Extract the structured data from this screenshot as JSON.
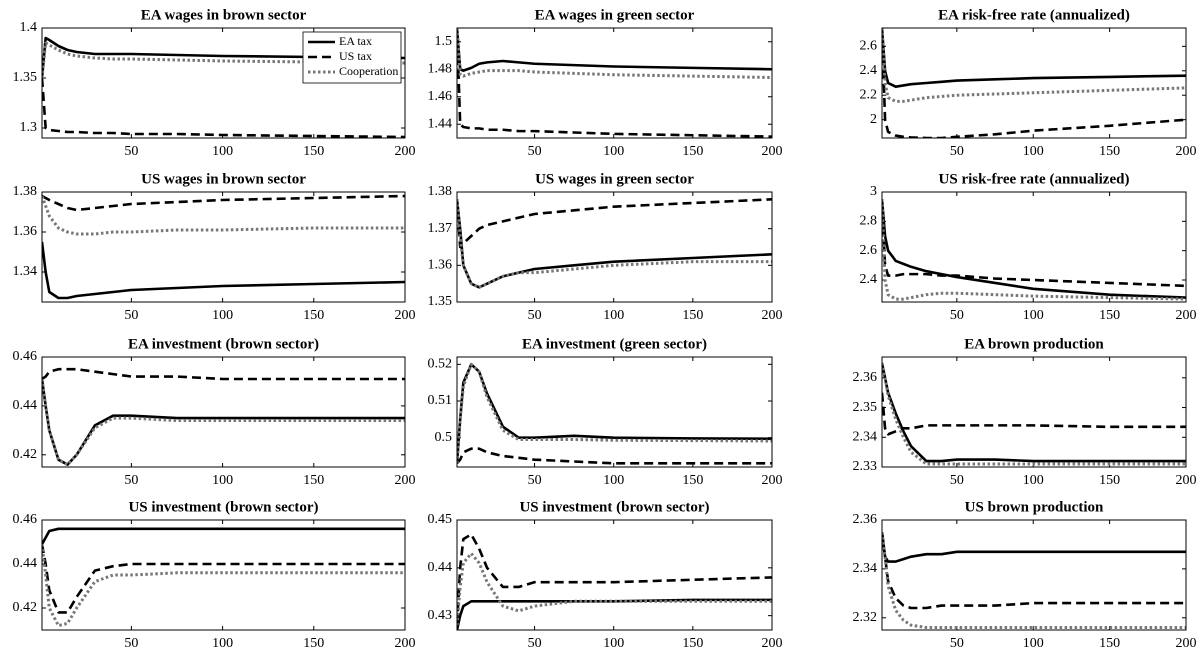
{
  "chart_data": [
    {
      "type": "line",
      "title": "EA wages in brown sector",
      "x": [
        1,
        3,
        5,
        10,
        15,
        20,
        30,
        40,
        50,
        75,
        100,
        150,
        200
      ],
      "xlim": [
        1,
        200
      ],
      "xticks": [
        50,
        100,
        150,
        200
      ],
      "ylim": [
        1.29,
        1.4
      ],
      "yticks": [
        1.3,
        1.35,
        1.4
      ],
      "legend": "upper right",
      "series": [
        {
          "name": "EA tax",
          "color": "#000000",
          "dash": "solid",
          "values": [
            1.35,
            1.39,
            1.388,
            1.382,
            1.378,
            1.376,
            1.374,
            1.374,
            1.374,
            1.373,
            1.372,
            1.371,
            1.37
          ]
        },
        {
          "name": "US tax",
          "color": "#000000",
          "dash": "dashed",
          "values": [
            1.35,
            1.3,
            1.298,
            1.297,
            1.296,
            1.296,
            1.295,
            1.295,
            1.294,
            1.294,
            1.293,
            1.292,
            1.291
          ]
        },
        {
          "name": "Cooperation",
          "color": "#777777",
          "dash": "dotted",
          "values": [
            1.35,
            1.385,
            1.383,
            1.378,
            1.374,
            1.372,
            1.37,
            1.369,
            1.369,
            1.368,
            1.367,
            1.366,
            1.365
          ]
        }
      ]
    },
    {
      "type": "line",
      "title": "EA wages in green sector",
      "x": [
        1,
        3,
        5,
        10,
        15,
        20,
        30,
        40,
        50,
        75,
        100,
        150,
        200
      ],
      "xlim": [
        1,
        200
      ],
      "xticks": [
        50,
        100,
        150,
        200
      ],
      "ylim": [
        1.43,
        1.51
      ],
      "yticks": [
        1.44,
        1.46,
        1.48,
        1.5
      ],
      "series": [
        {
          "color": "#000000",
          "dash": "solid",
          "values": [
            1.51,
            1.48,
            1.479,
            1.481,
            1.484,
            1.485,
            1.486,
            1.485,
            1.484,
            1.483,
            1.482,
            1.481,
            1.48
          ]
        },
        {
          "color": "#000000",
          "dash": "dashed",
          "values": [
            1.51,
            1.44,
            1.438,
            1.437,
            1.437,
            1.436,
            1.436,
            1.435,
            1.435,
            1.434,
            1.433,
            1.432,
            1.431
          ]
        },
        {
          "color": "#777777",
          "dash": "dotted",
          "values": [
            1.51,
            1.476,
            1.475,
            1.477,
            1.478,
            1.479,
            1.479,
            1.479,
            1.478,
            1.477,
            1.476,
            1.475,
            1.474
          ]
        }
      ]
    },
    {
      "type": "line",
      "title": "EA risk-free rate (annualized)",
      "x": [
        1,
        3,
        5,
        10,
        15,
        20,
        30,
        40,
        50,
        75,
        100,
        150,
        200
      ],
      "xlim": [
        1,
        200
      ],
      "xticks": [
        50,
        100,
        150,
        200
      ],
      "ylim": [
        1.85,
        2.75
      ],
      "yticks": [
        2,
        2.2,
        2.4,
        2.6
      ],
      "series": [
        {
          "color": "#000000",
          "dash": "solid",
          "values": [
            2.75,
            2.4,
            2.3,
            2.27,
            2.28,
            2.29,
            2.3,
            2.31,
            2.32,
            2.33,
            2.34,
            2.35,
            2.36
          ]
        },
        {
          "color": "#000000",
          "dash": "dashed",
          "values": [
            2.75,
            2.0,
            1.9,
            1.87,
            1.86,
            1.855,
            1.85,
            1.85,
            1.86,
            1.88,
            1.91,
            1.95,
            2.0
          ]
        },
        {
          "color": "#777777",
          "dash": "dotted",
          "values": [
            2.75,
            2.3,
            2.18,
            2.15,
            2.15,
            2.16,
            2.18,
            2.19,
            2.2,
            2.21,
            2.22,
            2.24,
            2.26
          ]
        }
      ]
    },
    {
      "type": "line",
      "title": "US wages in brown sector",
      "x": [
        1,
        3,
        5,
        10,
        15,
        20,
        30,
        40,
        50,
        75,
        100,
        150,
        200
      ],
      "xlim": [
        1,
        200
      ],
      "xticks": [
        50,
        100,
        150,
        200
      ],
      "ylim": [
        1.325,
        1.38
      ],
      "yticks": [
        1.34,
        1.36,
        1.38
      ],
      "series": [
        {
          "color": "#000000",
          "dash": "solid",
          "values": [
            1.355,
            1.34,
            1.33,
            1.327,
            1.327,
            1.328,
            1.329,
            1.33,
            1.331,
            1.332,
            1.333,
            1.334,
            1.335
          ]
        },
        {
          "color": "#000000",
          "dash": "dashed",
          "values": [
            1.378,
            1.377,
            1.376,
            1.374,
            1.372,
            1.371,
            1.372,
            1.373,
            1.374,
            1.375,
            1.376,
            1.377,
            1.378
          ]
        },
        {
          "color": "#777777",
          "dash": "dotted",
          "values": [
            1.378,
            1.373,
            1.368,
            1.362,
            1.36,
            1.359,
            1.359,
            1.36,
            1.36,
            1.361,
            1.361,
            1.362,
            1.362
          ]
        }
      ]
    },
    {
      "type": "line",
      "title": "US wages in green sector",
      "x": [
        1,
        3,
        5,
        10,
        15,
        20,
        30,
        40,
        50,
        75,
        100,
        150,
        200
      ],
      "xlim": [
        1,
        200
      ],
      "xticks": [
        50,
        100,
        150,
        200
      ],
      "ylim": [
        1.35,
        1.38
      ],
      "yticks": [
        1.35,
        1.36,
        1.37,
        1.38
      ],
      "series": [
        {
          "color": "#000000",
          "dash": "solid",
          "values": [
            1.378,
            1.37,
            1.36,
            1.355,
            1.354,
            1.355,
            1.357,
            1.358,
            1.359,
            1.36,
            1.361,
            1.362,
            1.363
          ]
        },
        {
          "color": "#000000",
          "dash": "dashed",
          "values": [
            1.378,
            1.365,
            1.366,
            1.368,
            1.37,
            1.371,
            1.372,
            1.373,
            1.374,
            1.375,
            1.376,
            1.377,
            1.378
          ]
        },
        {
          "color": "#777777",
          "dash": "dotted",
          "values": [
            1.378,
            1.368,
            1.36,
            1.355,
            1.354,
            1.355,
            1.357,
            1.358,
            1.358,
            1.359,
            1.36,
            1.361,
            1.361
          ]
        }
      ]
    },
    {
      "type": "line",
      "title": "US risk-free rate (annualized)",
      "x": [
        1,
        3,
        5,
        10,
        15,
        20,
        30,
        40,
        50,
        75,
        100,
        150,
        200
      ],
      "xlim": [
        1,
        200
      ],
      "xticks": [
        50,
        100,
        150,
        200
      ],
      "ylim": [
        2.25,
        3
      ],
      "yticks": [
        2.4,
        2.6,
        2.8,
        3
      ],
      "series": [
        {
          "color": "#000000",
          "dash": "solid",
          "values": [
            2.95,
            2.7,
            2.6,
            2.53,
            2.51,
            2.49,
            2.46,
            2.44,
            2.42,
            2.38,
            2.34,
            2.3,
            2.28
          ]
        },
        {
          "color": "#000000",
          "dash": "dashed",
          "values": [
            2.95,
            2.5,
            2.43,
            2.43,
            2.44,
            2.44,
            2.44,
            2.43,
            2.43,
            2.41,
            2.4,
            2.38,
            2.36
          ]
        },
        {
          "color": "#777777",
          "dash": "dotted",
          "values": [
            2.95,
            2.4,
            2.3,
            2.27,
            2.27,
            2.28,
            2.3,
            2.31,
            2.31,
            2.3,
            2.29,
            2.28,
            2.27
          ]
        }
      ]
    },
    {
      "type": "line",
      "title": "EA investment (brown sector)",
      "x": [
        1,
        3,
        5,
        10,
        15,
        20,
        30,
        40,
        50,
        75,
        100,
        150,
        200
      ],
      "xlim": [
        1,
        200
      ],
      "xticks": [
        50,
        100,
        150,
        200
      ],
      "ylim": [
        0.415,
        0.46
      ],
      "yticks": [
        0.42,
        0.44,
        0.46
      ],
      "series": [
        {
          "color": "#000000",
          "dash": "solid",
          "values": [
            0.451,
            0.44,
            0.43,
            0.418,
            0.416,
            0.42,
            0.432,
            0.436,
            0.436,
            0.435,
            0.435,
            0.435,
            0.435
          ]
        },
        {
          "color": "#000000",
          "dash": "dashed",
          "values": [
            0.451,
            0.452,
            0.454,
            0.455,
            0.455,
            0.455,
            0.454,
            0.453,
            0.452,
            0.452,
            0.451,
            0.451,
            0.451
          ]
        },
        {
          "color": "#777777",
          "dash": "dotted",
          "values": [
            0.451,
            0.44,
            0.43,
            0.418,
            0.416,
            0.42,
            0.431,
            0.435,
            0.435,
            0.434,
            0.434,
            0.434,
            0.434
          ]
        }
      ]
    },
    {
      "type": "line",
      "title": "EA investment (green sector)",
      "x": [
        1,
        3,
        5,
        10,
        15,
        20,
        30,
        40,
        50,
        75,
        100,
        150,
        200
      ],
      "xlim": [
        1,
        200
      ],
      "xticks": [
        50,
        100,
        150,
        200
      ],
      "ylim": [
        0.492,
        0.522
      ],
      "yticks": [
        0.5,
        0.51,
        0.52
      ],
      "series": [
        {
          "color": "#000000",
          "dash": "solid",
          "values": [
            0.493,
            0.505,
            0.515,
            0.52,
            0.518,
            0.512,
            0.503,
            0.5,
            0.5,
            0.5005,
            0.5,
            0.4998,
            0.4997
          ]
        },
        {
          "color": "#000000",
          "dash": "dashed",
          "values": [
            0.493,
            0.494,
            0.496,
            0.497,
            0.497,
            0.496,
            0.495,
            0.4945,
            0.494,
            0.4935,
            0.493,
            0.493,
            0.493
          ]
        },
        {
          "color": "#777777",
          "dash": "dotted",
          "values": [
            0.493,
            0.505,
            0.514,
            0.52,
            0.518,
            0.511,
            0.502,
            0.4995,
            0.4995,
            0.4995,
            0.4993,
            0.4992,
            0.4991
          ]
        }
      ]
    },
    {
      "type": "line",
      "title": "EA brown  production",
      "x": [
        1,
        3,
        5,
        10,
        15,
        20,
        30,
        40,
        50,
        75,
        100,
        150,
        200
      ],
      "xlim": [
        1,
        200
      ],
      "xticks": [
        50,
        100,
        150,
        200
      ],
      "ylim": [
        2.33,
        2.367
      ],
      "yticks": [
        2.33,
        2.34,
        2.35,
        2.36
      ],
      "series": [
        {
          "color": "#000000",
          "dash": "solid",
          "values": [
            2.365,
            2.36,
            2.355,
            2.348,
            2.342,
            2.337,
            2.332,
            2.332,
            2.3325,
            2.3325,
            2.332,
            2.332,
            2.332
          ]
        },
        {
          "color": "#000000",
          "dash": "dashed",
          "values": [
            2.355,
            2.343,
            2.341,
            2.342,
            2.343,
            2.343,
            2.344,
            2.344,
            2.344,
            2.344,
            2.344,
            2.3435,
            2.3435
          ]
        },
        {
          "color": "#777777",
          "dash": "dotted",
          "values": [
            2.365,
            2.36,
            2.354,
            2.346,
            2.34,
            2.335,
            2.331,
            2.331,
            2.331,
            2.331,
            2.331,
            2.331,
            2.331
          ]
        }
      ]
    },
    {
      "type": "line",
      "title": "US investment (brown sector)",
      "x": [
        1,
        3,
        5,
        10,
        15,
        20,
        30,
        40,
        50,
        75,
        100,
        150,
        200
      ],
      "xlim": [
        1,
        200
      ],
      "xticks": [
        50,
        100,
        150,
        200
      ],
      "ylim": [
        0.41,
        0.46
      ],
      "yticks": [
        0.42,
        0.44,
        0.46
      ],
      "series": [
        {
          "color": "#000000",
          "dash": "solid",
          "values": [
            0.449,
            0.452,
            0.455,
            0.456,
            0.456,
            0.456,
            0.456,
            0.456,
            0.456,
            0.456,
            0.456,
            0.456,
            0.456
          ]
        },
        {
          "color": "#000000",
          "dash": "dashed",
          "values": [
            0.449,
            0.44,
            0.428,
            0.418,
            0.418,
            0.425,
            0.437,
            0.439,
            0.44,
            0.44,
            0.44,
            0.44,
            0.44
          ]
        },
        {
          "color": "#777777",
          "dash": "dotted",
          "values": [
            0.449,
            0.435,
            0.42,
            0.412,
            0.413,
            0.42,
            0.432,
            0.435,
            0.435,
            0.436,
            0.436,
            0.436,
            0.436
          ]
        }
      ]
    },
    {
      "type": "line",
      "title": "US investment (brown sector)",
      "x": [
        1,
        3,
        5,
        10,
        15,
        20,
        30,
        40,
        50,
        75,
        100,
        150,
        200
      ],
      "xlim": [
        1,
        200
      ],
      "xticks": [
        50,
        100,
        150,
        200
      ],
      "ylim": [
        0.427,
        0.45
      ],
      "yticks": [
        0.43,
        0.44,
        0.45
      ],
      "series": [
        {
          "color": "#000000",
          "dash": "solid",
          "values": [
            0.427,
            0.43,
            0.432,
            0.433,
            0.433,
            0.433,
            0.433,
            0.433,
            0.433,
            0.433,
            0.433,
            0.4333,
            0.4333
          ]
        },
        {
          "color": "#000000",
          "dash": "dashed",
          "values": [
            0.428,
            0.44,
            0.446,
            0.447,
            0.444,
            0.44,
            0.436,
            0.436,
            0.437,
            0.437,
            0.437,
            0.4375,
            0.438
          ]
        },
        {
          "color": "#777777",
          "dash": "dotted",
          "values": [
            0.428,
            0.436,
            0.441,
            0.443,
            0.441,
            0.437,
            0.432,
            0.431,
            0.432,
            0.433,
            0.433,
            0.433,
            0.433
          ]
        }
      ]
    },
    {
      "type": "line",
      "title": "US brown production",
      "x": [
        1,
        3,
        5,
        10,
        15,
        20,
        30,
        40,
        50,
        75,
        100,
        150,
        200
      ],
      "xlim": [
        1,
        200
      ],
      "xticks": [
        50,
        100,
        150,
        200
      ],
      "ylim": [
        2.315,
        2.36
      ],
      "yticks": [
        2.32,
        2.34,
        2.36
      ],
      "series": [
        {
          "color": "#000000",
          "dash": "solid",
          "values": [
            2.355,
            2.345,
            2.343,
            2.343,
            2.344,
            2.345,
            2.346,
            2.346,
            2.347,
            2.347,
            2.347,
            2.347,
            2.347
          ]
        },
        {
          "color": "#000000",
          "dash": "dashed",
          "values": [
            2.355,
            2.345,
            2.335,
            2.328,
            2.325,
            2.324,
            2.324,
            2.325,
            2.325,
            2.325,
            2.326,
            2.326,
            2.326
          ]
        },
        {
          "color": "#777777",
          "dash": "dotted",
          "values": [
            2.355,
            2.345,
            2.333,
            2.323,
            2.319,
            2.317,
            2.316,
            2.316,
            2.316,
            2.316,
            2.316,
            2.316,
            2.316
          ]
        }
      ]
    }
  ]
}
